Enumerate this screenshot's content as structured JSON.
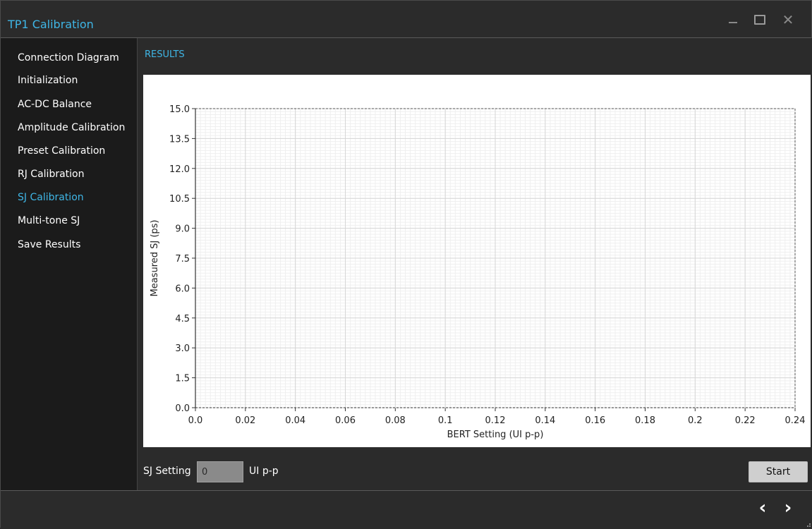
{
  "window": {
    "title": "TP1 Calibration",
    "controls": [
      "minimize-icon",
      "maximize-icon",
      "close-icon"
    ]
  },
  "sidebar": {
    "items": [
      {
        "label": "Connection Diagram",
        "active": false
      },
      {
        "label": "Initialization",
        "active": false
      },
      {
        "label": "AC-DC Balance",
        "active": false
      },
      {
        "label": "Amplitude Calibration",
        "active": false
      },
      {
        "label": "Preset Calibration",
        "active": false
      },
      {
        "label": "RJ Calibration",
        "active": false
      },
      {
        "label": "SJ Calibration",
        "active": true
      },
      {
        "label": "Multi-tone SJ",
        "active": false
      },
      {
        "label": "Save Results",
        "active": false
      }
    ]
  },
  "main": {
    "section_title": "RESULTS",
    "sj_setting_label": "SJ Setting",
    "sj_setting_value": "0",
    "unit_label": "UI p-p",
    "start_label": "Start"
  },
  "footer": {
    "icons": [
      "chevron-left-icon",
      "chevron-right-icon"
    ]
  },
  "colors": {
    "accent": "#3fb6e6",
    "background": "#2b2b2b",
    "sidebar": "#1b1b1b",
    "plot_background": "#ffffff"
  },
  "chart_data": {
    "type": "scatter",
    "title": "",
    "xlabel": "BERT Setting (UI p-p)",
    "ylabel": "Measured SJ (ps)",
    "xlim": [
      0,
      0.24
    ],
    "ylim": [
      0,
      15
    ],
    "xticks": [
      "0.0",
      "0.02",
      "0.04",
      "0.06",
      "0.08",
      "0.1",
      "0.12",
      "0.14",
      "0.16",
      "0.18",
      "0.2",
      "0.22",
      "0.24"
    ],
    "yticks": [
      "0.0",
      "1.5",
      "3.0",
      "4.5",
      "6.0",
      "7.5",
      "9.0",
      "10.5",
      "12.0",
      "13.5",
      "15.0"
    ],
    "grid": true,
    "series": []
  }
}
